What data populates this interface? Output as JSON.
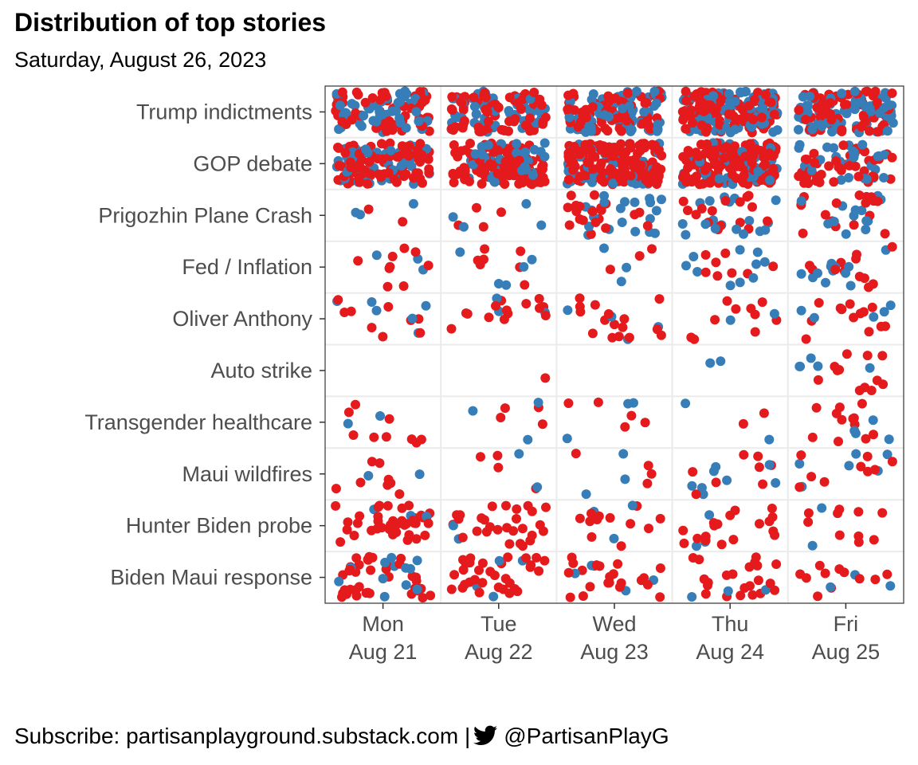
{
  "title": "Distribution of top stories",
  "subtitle": "Saturday, August 26, 2023",
  "footer": {
    "prefix": "Subscribe: partisanplayground.substack.com |",
    "twitter_icon": "twitter-bird-icon",
    "handle": "@PartisanPlayG"
  },
  "colors": {
    "blue": "#377eb8",
    "red": "#e41a1c",
    "grid": "#ebebeb",
    "panel_border": "#333333",
    "axis_text": "#4d4d4d"
  },
  "chart_data": {
    "type": "scatter",
    "jitter": true,
    "title": "Distribution of top stories",
    "subtitle": "Saturday, August 26, 2023",
    "x_categories": [
      {
        "day": "Mon",
        "date": "Aug 21"
      },
      {
        "day": "Tue",
        "date": "Aug 22"
      },
      {
        "day": "Wed",
        "date": "Aug 23"
      },
      {
        "day": "Thu",
        "date": "Aug 24"
      },
      {
        "day": "Fri",
        "date": "Aug 25"
      }
    ],
    "y_categories": [
      "Trump indictments",
      "GOP debate",
      "Prigozhin Plane Crash",
      "Fed / Inflation",
      "Oliver Anthony",
      "Auto strike",
      "Transgender healthcare",
      "Maui wildfires",
      "Hunter Biden probe",
      "Biden Maui response"
    ],
    "series": [
      {
        "color": "#377eb8"
      },
      {
        "color": "#e41a1c"
      }
    ],
    "counts_blue": [
      [
        50,
        55,
        80,
        90,
        70
      ],
      [
        45,
        35,
        40,
        50,
        30
      ],
      [
        3,
        4,
        20,
        18,
        14
      ],
      [
        3,
        5,
        3,
        10,
        12
      ],
      [
        6,
        3,
        4,
        2,
        5
      ],
      [
        0,
        0,
        0,
        2,
        5
      ],
      [
        2,
        3,
        3,
        2,
        4
      ],
      [
        2,
        2,
        3,
        8,
        6
      ],
      [
        3,
        2,
        3,
        3,
        2
      ],
      [
        12,
        4,
        4,
        3,
        3
      ]
    ],
    "counts_red": [
      [
        60,
        70,
        70,
        110,
        70
      ],
      [
        90,
        110,
        150,
        140,
        40
      ],
      [
        2,
        4,
        20,
        16,
        16
      ],
      [
        9,
        7,
        3,
        8,
        12
      ],
      [
        9,
        14,
        16,
        10,
        14
      ],
      [
        0,
        1,
        0,
        0,
        12
      ],
      [
        9,
        4,
        5,
        2,
        12
      ],
      [
        8,
        4,
        4,
        8,
        9
      ],
      [
        40,
        28,
        12,
        18,
        10
      ],
      [
        38,
        32,
        22,
        22,
        11
      ]
    ],
    "grid": true,
    "legend": "none"
  }
}
